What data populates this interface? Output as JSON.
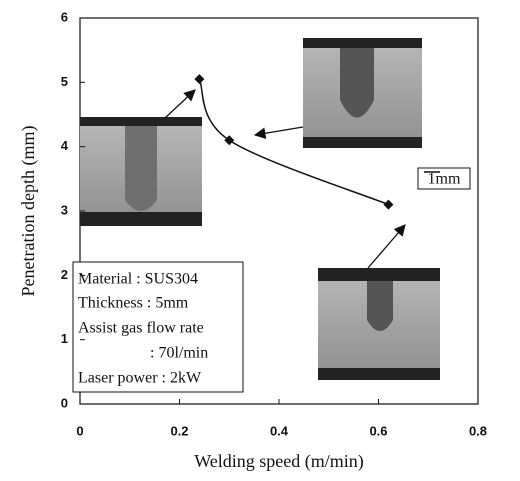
{
  "chart_data": {
    "type": "scatter",
    "x_label": "Welding speed (m/min)",
    "y_label": "Penetration depth (mm)",
    "series": [
      {
        "x": [
          0.24,
          0.3,
          0.62
        ],
        "values": [
          5.05,
          4.1,
          3.1
        ],
        "color": "#111111",
        "marker": "diamond"
      }
    ],
    "trendline": true,
    "xlim": [
      0,
      0.8
    ],
    "xticks": [
      0,
      0.2,
      0.4,
      0.6,
      0.8
    ],
    "ylim": [
      0,
      6
    ],
    "yticks": [
      0,
      1,
      2,
      3,
      4,
      5,
      6
    ],
    "grid": false,
    "annotations": [
      "Material : SUS304",
      "Thickness : 5mm",
      "Assist gas flow rate",
      ": 70l/min",
      "Laser power : 2kW"
    ],
    "scale_label": "1mm"
  }
}
